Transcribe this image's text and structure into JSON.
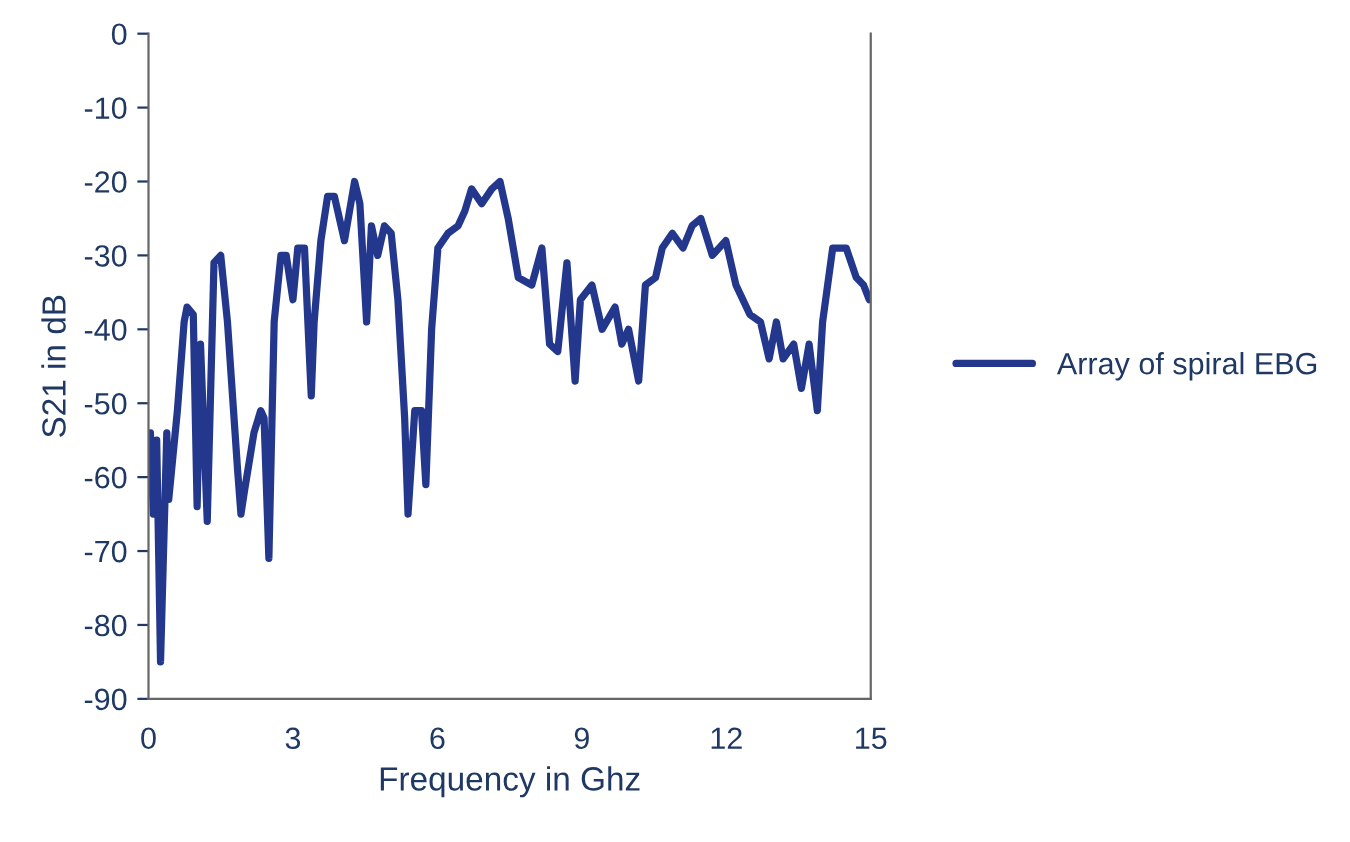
{
  "chart_data": {
    "type": "line",
    "xlabel": "Frequency in Ghz",
    "ylabel": "S21 in dB",
    "xlim": [
      0,
      15
    ],
    "xticks": [
      0,
      3,
      6,
      9,
      12,
      15
    ],
    "ylim": [
      -90,
      0
    ],
    "yticks": [
      0,
      -10,
      -20,
      -30,
      -40,
      -50,
      -60,
      -70,
      -80,
      -90
    ],
    "grid": false,
    "legend": "right",
    "marker": "none",
    "line_style": "solid",
    "series": [
      {
        "name": "Array of spiral EBG",
        "color": "#23388c",
        "x": [
          0.04,
          0.1,
          0.17,
          0.25,
          0.38,
          0.42,
          0.6,
          0.74,
          0.8,
          0.93,
          1.01,
          1.08,
          1.22,
          1.36,
          1.5,
          1.64,
          1.85,
          1.92,
          1.99,
          2.19,
          2.33,
          2.4,
          2.5,
          2.61,
          2.75,
          2.86,
          3.0,
          3.1,
          3.24,
          3.38,
          3.44,
          3.58,
          3.72,
          3.86,
          4.07,
          4.28,
          4.39,
          4.53,
          4.63,
          4.76,
          4.9,
          5.04,
          5.18,
          5.32,
          5.39,
          5.53,
          5.67,
          5.76,
          5.88,
          6.01,
          6.22,
          6.43,
          6.57,
          6.71,
          6.92,
          7.13,
          7.3,
          7.47,
          7.68,
          7.96,
          8.17,
          8.33,
          8.5,
          8.69,
          8.86,
          8.97,
          9.21,
          9.42,
          9.69,
          9.83,
          9.97,
          10.18,
          10.32,
          10.53,
          10.67,
          10.88,
          11.1,
          11.29,
          11.47,
          11.71,
          11.99,
          12.2,
          12.49,
          12.71,
          12.89,
          13.04,
          13.18,
          13.4,
          13.56,
          13.72,
          13.89,
          14.0,
          14.21,
          14.49,
          14.7,
          14.85,
          14.97
        ],
        "values": [
          -54,
          -65,
          -55,
          -85,
          -54,
          -63,
          -51,
          -39,
          -37,
          -38,
          -64,
          -42,
          -66,
          -31,
          -30,
          -39,
          -59,
          -65,
          -62,
          -54,
          -51,
          -52,
          -71,
          -39,
          -30,
          -30,
          -36,
          -29,
          -29,
          -49,
          -39,
          -28,
          -22,
          -22,
          -28,
          -20,
          -23,
          -39,
          -26,
          -30,
          -26,
          -27,
          -36,
          -52,
          -65,
          -51,
          -51,
          -61,
          -40,
          -29,
          -27,
          -26,
          -24,
          -21,
          -23,
          -21,
          -20,
          -25,
          -33,
          -34,
          -29,
          -42,
          -43,
          -31,
          -47,
          -36,
          -34,
          -40,
          -37,
          -42,
          -40,
          -47,
          -34,
          -33,
          -29,
          -27,
          -29,
          -26,
          -25,
          -30,
          -28,
          -34,
          -38,
          -39,
          -44,
          -39,
          -44,
          -42,
          -48,
          -42,
          -51,
          -39,
          -29,
          -29,
          -33,
          -34,
          -36
        ]
      }
    ]
  }
}
